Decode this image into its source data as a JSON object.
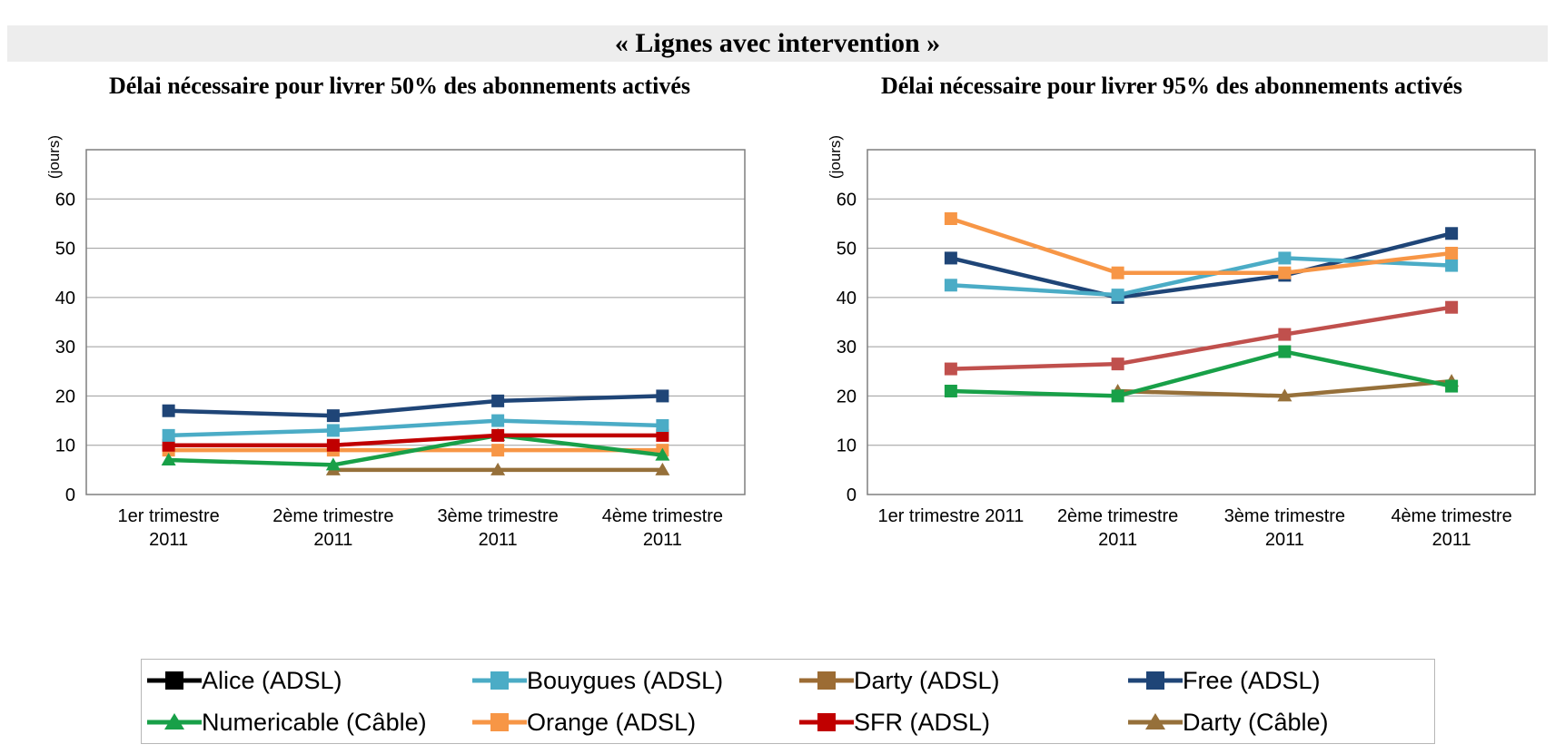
{
  "banner": {
    "title": "« Lignes avec intervention »"
  },
  "chart_data": [
    {
      "type": "line",
      "title": "Délai nécessaire pour livrer 50% des abonnements activés",
      "ylabel": "(jours)",
      "xlabel": "",
      "categories": [
        "1er trimestre 2011",
        "2ème trimestre 2011",
        "3ème trimestre 2011",
        "4ème trimestre 2011"
      ],
      "category_label_lines": [
        [
          "1er trimestre",
          "2011"
        ],
        [
          "2ème trimestre",
          "2011"
        ],
        [
          "3ème trimestre",
          "2011"
        ],
        [
          "4ème trimestre",
          "2011"
        ]
      ],
      "ylim": [
        0,
        70
      ],
      "yticks": [
        0,
        10,
        20,
        30,
        40,
        50,
        60
      ],
      "grid": true,
      "legend_position": "bottom-shared",
      "series": [
        {
          "name": "Darty (Câble)",
          "color": "#96703A",
          "marker": "triangle",
          "values": [
            null,
            5,
            5,
            5
          ]
        },
        {
          "name": "Orange (ADSL)",
          "color": "#F79646",
          "marker": "square",
          "values": [
            9,
            9,
            9,
            9
          ]
        },
        {
          "name": "Numericable (Câble)",
          "color": "#18A048",
          "marker": "triangle",
          "values": [
            7,
            6,
            12,
            8
          ]
        },
        {
          "name": "SFR (ADSL)",
          "color": "#C00000",
          "marker": "square",
          "values": [
            10,
            10,
            12,
            12
          ]
        },
        {
          "name": "Bouygues (ADSL)",
          "color": "#4BACC6",
          "marker": "square",
          "values": [
            12,
            13,
            15,
            14
          ]
        },
        {
          "name": "Free (ADSL)",
          "color": "#1F4577",
          "marker": "square",
          "values": [
            17,
            16,
            19,
            20
          ]
        },
        {
          "name": "Alice (ADSL)",
          "color": "#000000",
          "marker": "square",
          "values": [
            null,
            null,
            null,
            null
          ]
        },
        {
          "name": "Darty (ADSL)",
          "color": "#9C6C34",
          "marker": "square",
          "values": [
            null,
            null,
            null,
            null
          ]
        }
      ]
    },
    {
      "type": "line",
      "title": "Délai nécessaire pour livrer 95% des abonnements activés",
      "ylabel": "(jours)",
      "xlabel": "",
      "categories": [
        "1er trimestre 2011",
        "2ème trimestre 2011",
        "3ème trimestre 2011",
        "4ème trimestre 2011"
      ],
      "category_label_lines": [
        [
          "1er trimestre 2011"
        ],
        [
          "2ème trimestre",
          "2011"
        ],
        [
          "3ème trimestre",
          "2011"
        ],
        [
          "4ème trimestre",
          "2011"
        ]
      ],
      "ylim": [
        0,
        70
      ],
      "yticks": [
        0,
        10,
        20,
        30,
        40,
        50,
        60
      ],
      "grid": true,
      "legend_position": "bottom-shared",
      "series": [
        {
          "name": "Darty (Câble)",
          "color": "#96703A",
          "marker": "triangle",
          "values": [
            null,
            21,
            20,
            23
          ]
        },
        {
          "name": "Numericable (Câble)",
          "color": "#18A048",
          "marker": "square",
          "values": [
            21,
            20,
            29,
            22
          ]
        },
        {
          "name": "SFR (ADSL)",
          "color": "#C0504D",
          "marker": "square",
          "values": [
            25.5,
            26.5,
            32.5,
            38
          ]
        },
        {
          "name": "Free (ADSL)",
          "color": "#1F4577",
          "marker": "square",
          "values": [
            48,
            40,
            44.5,
            53
          ]
        },
        {
          "name": "Bouygues (ADSL)",
          "color": "#4BACC6",
          "marker": "square",
          "values": [
            42.5,
            40.5,
            48,
            46.5
          ]
        },
        {
          "name": "Orange (ADSL)",
          "color": "#F79646",
          "marker": "square",
          "values": [
            56,
            45,
            45,
            49
          ]
        },
        {
          "name": "Alice (ADSL)",
          "color": "#000000",
          "marker": "square",
          "values": [
            null,
            null,
            null,
            null
          ]
        },
        {
          "name": "Darty (ADSL)",
          "color": "#9C6C34",
          "marker": "square",
          "values": [
            null,
            null,
            null,
            null
          ]
        }
      ]
    }
  ],
  "legend": {
    "items": [
      {
        "label": "Alice (ADSL)",
        "color": "#000000",
        "marker": "square"
      },
      {
        "label": "Bouygues (ADSL)",
        "color": "#4BACC6",
        "marker": "square"
      },
      {
        "label": "Darty (ADSL)",
        "color": "#9C6C34",
        "marker": "square"
      },
      {
        "label": "Free (ADSL)",
        "color": "#1F4577",
        "marker": "square"
      },
      {
        "label": "Numericable (Câble)",
        "color": "#18A048",
        "marker": "triangle"
      },
      {
        "label": "Orange (ADSL)",
        "color": "#F79646",
        "marker": "square"
      },
      {
        "label": "SFR (ADSL)",
        "color": "#C00000",
        "marker": "square"
      },
      {
        "label": "Darty (Câble)",
        "color": "#96703A",
        "marker": "triangle"
      }
    ]
  }
}
